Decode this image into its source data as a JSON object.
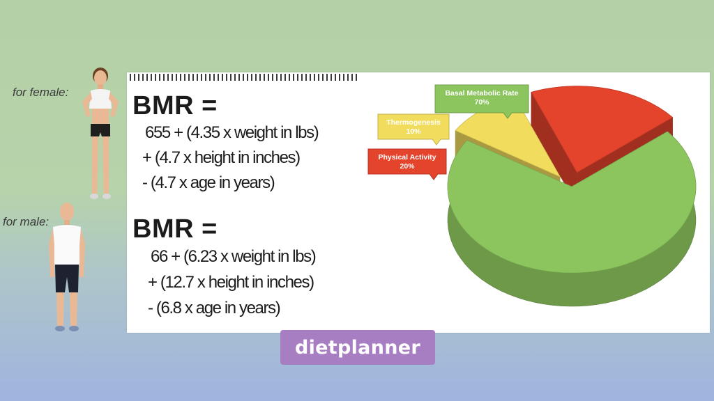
{
  "labels": {
    "female": "for female:",
    "male": "for male:"
  },
  "female_formula": {
    "title": "BMR =",
    "lines": [
      "655 + (4.35 x weight in lbs)",
      "+ (4.7 x height in inches)",
      "- (4.7 x age in years)"
    ]
  },
  "male_formula": {
    "title": "BMR =",
    "lines": [
      "66 + (6.23 x weight in lbs)",
      "+ (12.7 x height in inches)",
      "- (6.8 x age in years)"
    ]
  },
  "chart_data": {
    "type": "pie",
    "slices": [
      {
        "label": "Basal Metabolic Rate",
        "pct_label": "70%",
        "value": 70,
        "color": "#8cc45e"
      },
      {
        "label": "Thermogenesis",
        "pct_label": "10%",
        "value": 10,
        "color": "#f2dc5d"
      },
      {
        "label": "Physical Activity",
        "pct_label": "20%",
        "value": 20,
        "color": "#e4432c"
      }
    ]
  },
  "brand": {
    "text": "dietplanner",
    "color": "#a87ec2"
  },
  "colors": {
    "background_top": "#b4d0a6",
    "background_bottom": "#9fb4df",
    "board": "#ffffff"
  }
}
